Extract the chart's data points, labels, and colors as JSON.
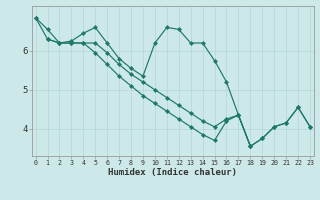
{
  "xlabel": "Humidex (Indice chaleur)",
  "bg_color": "#cce8e8",
  "grid_color_major": "#b8d8d8",
  "grid_color_minor": "#d0e8e8",
  "line_color": "#1e7868",
  "line1_x": [
    0,
    1,
    2,
    3,
    4,
    5,
    6,
    7,
    8,
    9,
    10,
    11,
    12,
    13,
    14,
    15,
    16,
    17,
    18,
    19,
    20,
    21,
    22,
    23
  ],
  "line1_y": [
    6.85,
    6.3,
    6.2,
    6.25,
    6.45,
    6.6,
    6.2,
    5.8,
    5.55,
    5.35,
    6.2,
    6.6,
    6.55,
    6.2,
    6.2,
    5.75,
    5.2,
    4.35,
    3.55,
    3.75,
    4.05,
    4.15,
    4.55,
    4.05
  ],
  "line2_x": [
    0,
    1,
    2,
    3,
    4,
    5,
    6,
    7,
    8,
    9,
    10,
    11,
    12,
    13,
    14,
    15,
    16,
    17,
    18,
    19,
    20,
    21,
    22,
    23
  ],
  "line2_y": [
    6.85,
    6.55,
    6.2,
    6.2,
    6.2,
    6.2,
    5.95,
    5.65,
    5.4,
    5.2,
    5.0,
    4.8,
    4.6,
    4.4,
    4.2,
    4.05,
    4.25,
    4.35,
    3.55,
    3.75,
    4.05,
    4.15,
    4.55,
    4.05
  ],
  "line3_x": [
    1,
    2,
    3,
    4,
    5,
    6,
    7,
    8,
    9,
    10,
    11,
    12,
    13,
    14,
    15,
    16,
    17,
    18
  ],
  "line3_y": [
    6.3,
    6.2,
    6.2,
    6.2,
    5.95,
    5.65,
    5.35,
    5.1,
    4.85,
    4.65,
    4.45,
    4.25,
    4.05,
    3.85,
    3.7,
    4.2,
    4.35,
    3.55
  ],
  "yticks": [
    4,
    5,
    6
  ],
  "xtick_labels": [
    "0",
    "1",
    "2",
    "3",
    "4",
    "5",
    "6",
    "7",
    "8",
    "9",
    "10",
    "11",
    "12",
    "13",
    "14",
    "15",
    "16",
    "17",
    "18",
    "19",
    "20",
    "21",
    "22",
    "23"
  ],
  "xtick_positions": [
    0,
    1,
    2,
    3,
    4,
    5,
    6,
    7,
    8,
    9,
    10,
    11,
    12,
    13,
    14,
    15,
    16,
    17,
    18,
    19,
    20,
    21,
    22,
    23
  ],
  "ylim": [
    3.3,
    7.15
  ],
  "xlim": [
    -0.3,
    23.3
  ]
}
